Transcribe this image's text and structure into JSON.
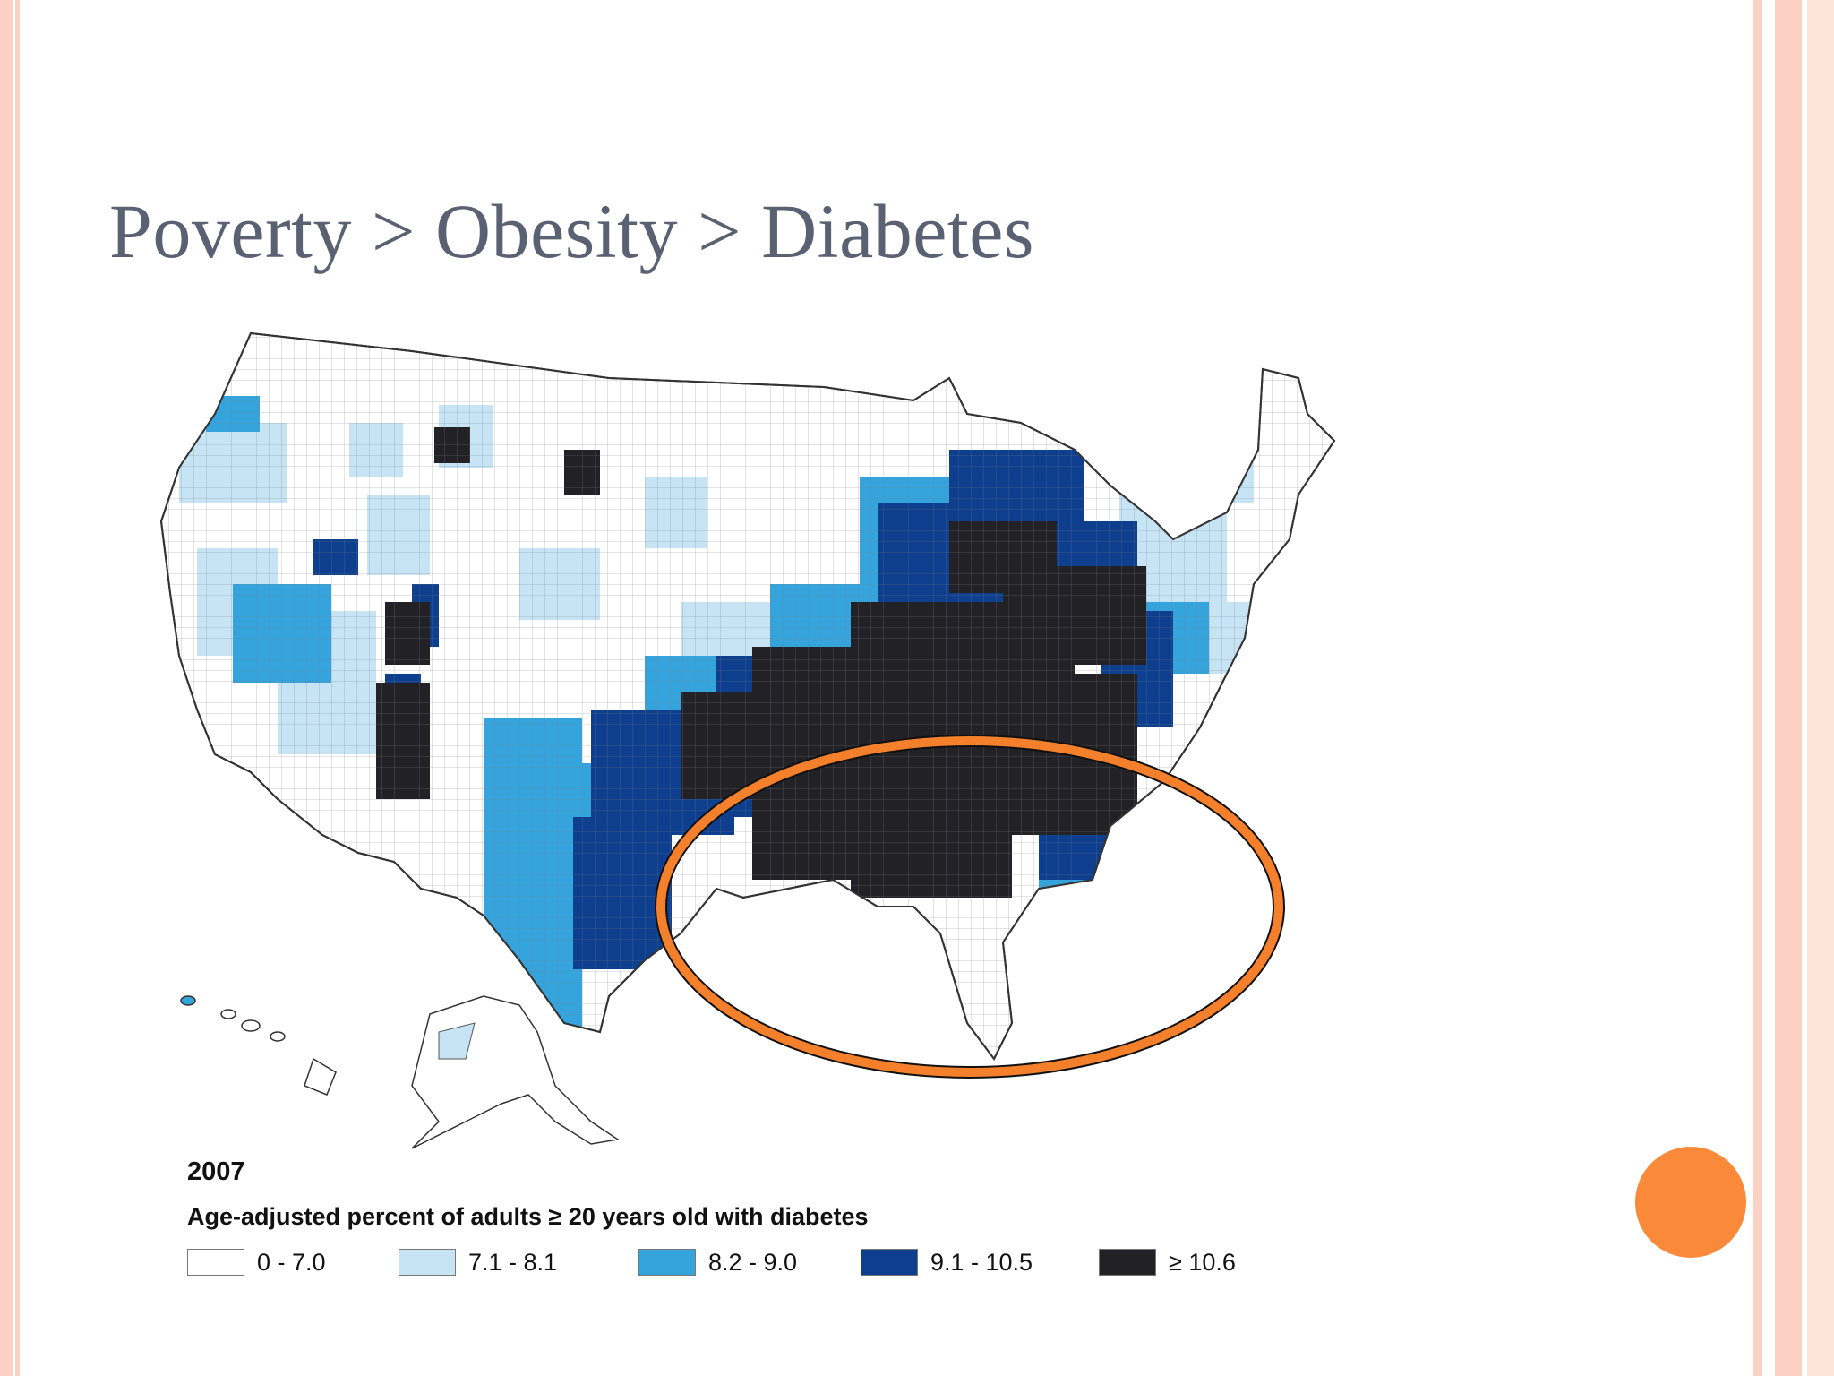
{
  "slide": {
    "title": "Poverty > Obesity > Diabetes"
  },
  "map": {
    "subject": "US counties diabetes prevalence",
    "highlight_color": "#f5802b",
    "legend": {
      "year": "2007",
      "caption": "Age-adjusted percent of adults ≥ 20 years old with diabetes",
      "classes": [
        {
          "label": "0 - 7.0",
          "color": "#ffffff"
        },
        {
          "label": "7.1 - 8.1",
          "color": "#c6e4f3"
        },
        {
          "label": "8.2 - 9.0",
          "color": "#35a4dc"
        },
        {
          "label": "9.1 - 10.5",
          "color": "#0d3f8e"
        },
        {
          "label": "≥ 10.6",
          "color": "#222226"
        }
      ]
    }
  },
  "decor": {
    "accent": "#fa8a3a",
    "border": "#fbd1c3"
  }
}
